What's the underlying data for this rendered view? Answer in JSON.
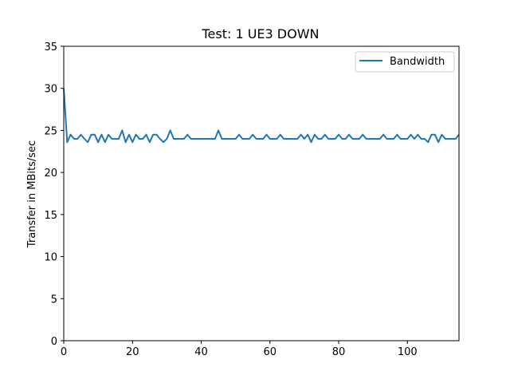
{
  "chart_data": {
    "type": "line",
    "title": "Test: 1 UE3 DOWN",
    "xlabel": "",
    "ylabel": "Transfer in MBits/sec",
    "xlim": [
      0,
      115
    ],
    "ylim": [
      0,
      35
    ],
    "xticks": [
      0,
      20,
      40,
      60,
      80,
      100
    ],
    "yticks": [
      0,
      5,
      10,
      15,
      20,
      25,
      30,
      35
    ],
    "grid": false,
    "legend": "top-right",
    "series": [
      {
        "name": "Bandwidth",
        "color": "#1f77b4",
        "x": [
          0,
          1,
          2,
          3,
          4,
          5,
          6,
          7,
          8,
          9,
          10,
          11,
          12,
          13,
          14,
          15,
          16,
          17,
          18,
          19,
          20,
          21,
          22,
          23,
          24,
          25,
          26,
          27,
          28,
          29,
          30,
          31,
          32,
          33,
          34,
          35,
          36,
          37,
          38,
          39,
          40,
          41,
          42,
          43,
          44,
          45,
          46,
          47,
          48,
          49,
          50,
          51,
          52,
          53,
          54,
          55,
          56,
          57,
          58,
          59,
          60,
          61,
          62,
          63,
          64,
          65,
          66,
          67,
          68,
          69,
          70,
          71,
          72,
          73,
          74,
          75,
          76,
          77,
          78,
          79,
          80,
          81,
          82,
          83,
          84,
          85,
          86,
          87,
          88,
          89,
          90,
          91,
          92,
          93,
          94,
          95,
          96,
          97,
          98,
          99,
          100,
          101,
          102,
          103,
          104,
          105,
          106,
          107,
          108,
          109,
          110,
          111,
          112,
          113,
          114,
          115
        ],
        "values": [
          30.0,
          23.6,
          24.5,
          24.0,
          24.0,
          24.5,
          24.0,
          23.6,
          24.5,
          24.5,
          23.6,
          24.5,
          23.6,
          24.5,
          24.0,
          24.0,
          24.0,
          25.0,
          23.6,
          24.5,
          23.6,
          24.5,
          24.0,
          24.0,
          24.5,
          23.6,
          24.5,
          24.5,
          24.0,
          23.6,
          24.0,
          25.0,
          24.0,
          24.0,
          24.0,
          24.0,
          24.5,
          24.0,
          24.0,
          24.0,
          24.0,
          24.0,
          24.0,
          24.0,
          24.0,
          25.0,
          24.0,
          24.0,
          24.0,
          24.0,
          24.0,
          24.5,
          24.0,
          24.0,
          24.0,
          24.5,
          24.0,
          24.0,
          24.0,
          24.5,
          24.0,
          24.0,
          24.0,
          24.5,
          24.0,
          24.0,
          24.0,
          24.0,
          24.0,
          24.5,
          24.0,
          24.5,
          23.6,
          24.5,
          24.0,
          24.0,
          24.5,
          24.0,
          24.0,
          24.0,
          24.5,
          24.0,
          24.0,
          24.5,
          24.0,
          24.0,
          24.0,
          24.5,
          24.0,
          24.0,
          24.0,
          24.0,
          24.0,
          24.5,
          24.0,
          24.0,
          24.0,
          24.5,
          24.0,
          24.0,
          24.0,
          24.5,
          24.0,
          24.5,
          24.0,
          24.0,
          23.6,
          24.5,
          24.5,
          23.6,
          24.5,
          24.0,
          24.0,
          24.0,
          24.0,
          24.5
        ]
      }
    ]
  }
}
